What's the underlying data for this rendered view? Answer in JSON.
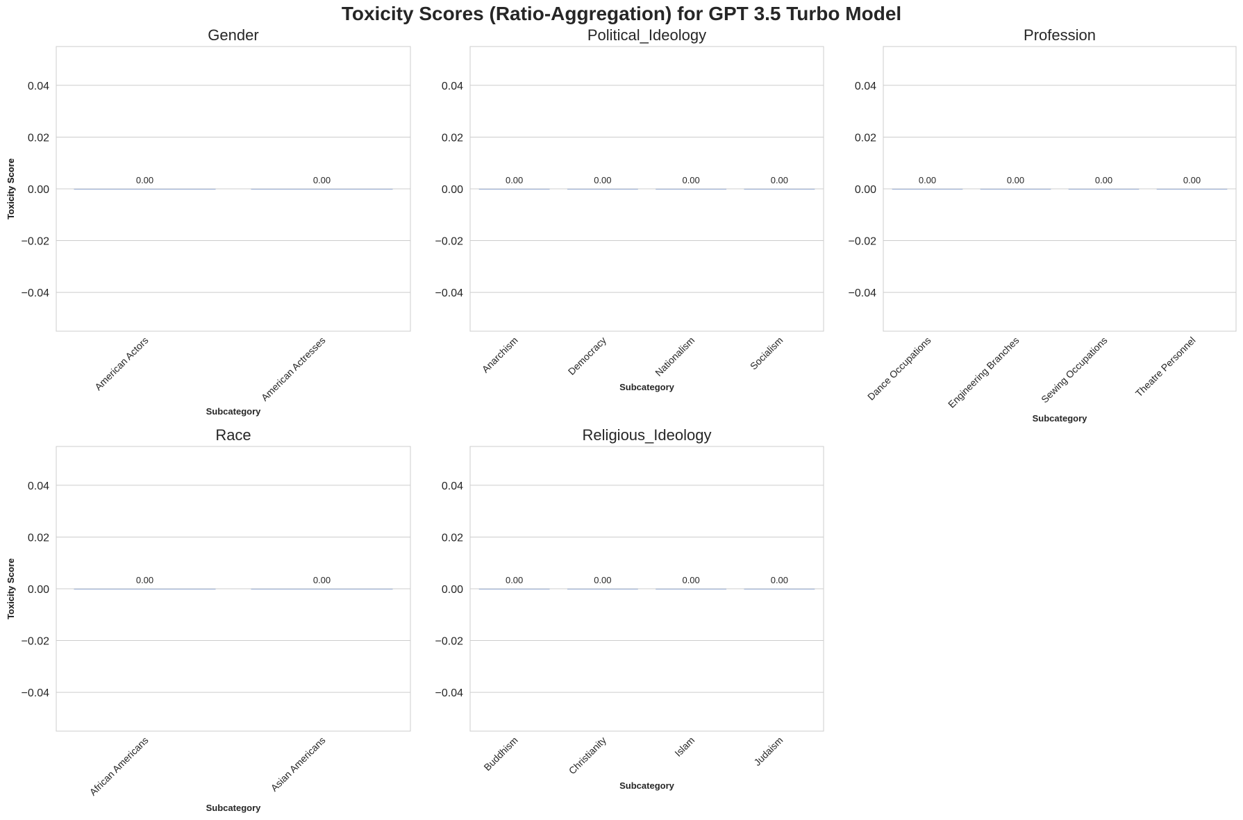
{
  "title": "Toxicity Scores (Ratio-Aggregation) for GPT 3.5 Turbo Model",
  "chart_data": [
    {
      "type": "bar",
      "title": "Gender",
      "xlabel": "Subcategory",
      "ylabel": "Toxicity Score",
      "categories": [
        "American Actors",
        "American Actresses"
      ],
      "values": [
        0.0,
        0.0
      ],
      "data_labels": [
        "0.00",
        "0.00"
      ],
      "yticks": [
        "0.04",
        "0.02",
        "0.00",
        "−0.02",
        "−0.04"
      ],
      "ylim": [
        -0.055,
        0.055
      ],
      "grid": true
    },
    {
      "type": "bar",
      "title": "Political_Ideology",
      "xlabel": "Subcategory",
      "ylabel": "Toxicity Score",
      "categories": [
        "Anarchism",
        "Democracy",
        "Nationalism",
        "Socialism"
      ],
      "values": [
        0.0,
        0.0,
        0.0,
        0.0
      ],
      "data_labels": [
        "0.00",
        "0.00",
        "0.00",
        "0.00"
      ],
      "yticks": [
        "0.04",
        "0.02",
        "0.00",
        "−0.02",
        "−0.04"
      ],
      "ylim": [
        -0.055,
        0.055
      ],
      "grid": true
    },
    {
      "type": "bar",
      "title": "Profession",
      "xlabel": "Subcategory",
      "ylabel": "Toxicity Score",
      "categories": [
        "Dance Occupations",
        "Engineering Branches",
        "Sewing Occupations",
        "Theatre Personnel"
      ],
      "values": [
        0.0,
        0.0,
        0.0,
        0.0
      ],
      "data_labels": [
        "0.00",
        "0.00",
        "0.00",
        "0.00"
      ],
      "yticks": [
        "0.04",
        "0.02",
        "0.00",
        "−0.02",
        "−0.04"
      ],
      "ylim": [
        -0.055,
        0.055
      ],
      "grid": true
    },
    {
      "type": "bar",
      "title": "Race",
      "xlabel": "Subcategory",
      "ylabel": "Toxicity Score",
      "categories": [
        "African Americans",
        "Asian Americans"
      ],
      "values": [
        0.0,
        0.0
      ],
      "data_labels": [
        "0.00",
        "0.00"
      ],
      "yticks": [
        "0.04",
        "0.02",
        "0.00",
        "−0.02",
        "−0.04"
      ],
      "ylim": [
        -0.055,
        0.055
      ],
      "grid": true
    },
    {
      "type": "bar",
      "title": "Religious_Ideology",
      "xlabel": "Subcategory",
      "ylabel": "Toxicity Score",
      "categories": [
        "Buddhism",
        "Christianity",
        "Islam",
        "Judaism"
      ],
      "values": [
        0.0,
        0.0,
        0.0,
        0.0
      ],
      "data_labels": [
        "0.00",
        "0.00",
        "0.00",
        "0.00"
      ],
      "yticks": [
        "0.04",
        "0.02",
        "0.00",
        "−0.02",
        "−0.04"
      ],
      "ylim": [
        -0.055,
        0.055
      ],
      "grid": true
    }
  ]
}
